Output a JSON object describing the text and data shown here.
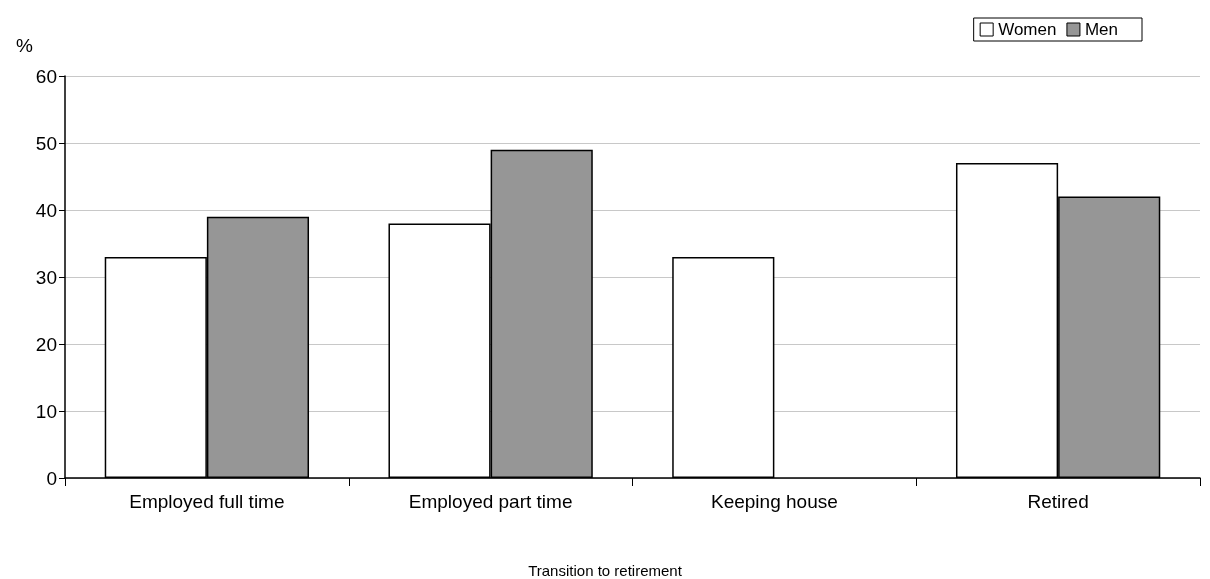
{
  "chart_data": {
    "type": "bar",
    "ylabel": "%",
    "xlabel": "Transition to retirement",
    "categories": [
      "Employed full time",
      "Employed part time",
      "Keeping house",
      "Retired"
    ],
    "series": [
      {
        "name": "Women",
        "color": "#ffffff",
        "values": [
          33,
          38,
          33,
          47
        ]
      },
      {
        "name": "Men",
        "color": "#969696",
        "values": [
          39,
          49,
          null,
          42
        ]
      }
    ],
    "ylim": [
      0,
      60
    ],
    "yticks": [
      0,
      10,
      20,
      30,
      40,
      50,
      60
    ],
    "grid": "y",
    "legend": "top right"
  }
}
